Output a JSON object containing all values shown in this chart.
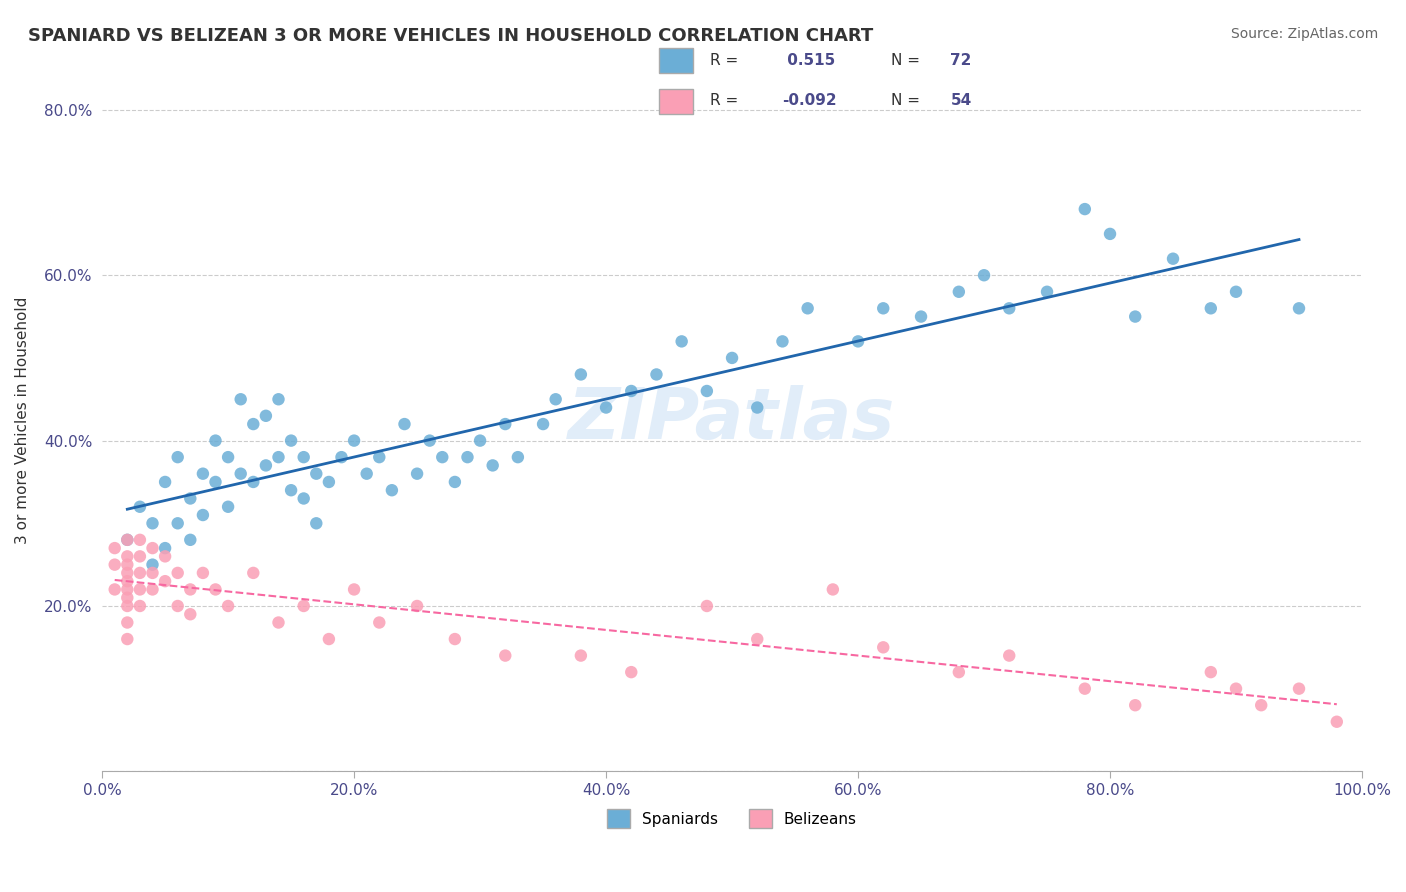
{
  "title": "SPANIARD VS BELIZEAN 3 OR MORE VEHICLES IN HOUSEHOLD CORRELATION CHART",
  "source_text": "Source: ZipAtlas.com",
  "xlabel": "",
  "ylabel": "3 or more Vehicles in Household",
  "watermark": "ZIPatlas",
  "legend_label1": "Spaniards",
  "legend_label2": "Belizeans",
  "r1": 0.515,
  "n1": 72,
  "r2": -0.092,
  "n2": 54,
  "blue_color": "#6baed6",
  "pink_color": "#fa9fb5",
  "blue_line_color": "#2166ac",
  "pink_line_color": "#f768a1",
  "xlim": [
    0.0,
    1.0
  ],
  "ylim": [
    0.0,
    0.85
  ],
  "xticks": [
    0.0,
    0.2,
    0.4,
    0.6,
    0.8,
    1.0
  ],
  "yticks": [
    0.0,
    0.2,
    0.4,
    0.6,
    0.8
  ],
  "xtick_labels": [
    "0.0%",
    "20.0%",
    "40.0%",
    "60.0%",
    "80.0%",
    "100.0%"
  ],
  "ytick_labels": [
    "",
    "20.0%",
    "40.0%",
    "60.0%",
    "80.0%"
  ],
  "blue_scatter_x": [
    0.02,
    0.03,
    0.04,
    0.04,
    0.05,
    0.05,
    0.06,
    0.06,
    0.07,
    0.07,
    0.08,
    0.08,
    0.09,
    0.09,
    0.1,
    0.1,
    0.11,
    0.11,
    0.12,
    0.12,
    0.13,
    0.13,
    0.14,
    0.14,
    0.15,
    0.15,
    0.16,
    0.16,
    0.17,
    0.17,
    0.18,
    0.19,
    0.2,
    0.21,
    0.22,
    0.23,
    0.24,
    0.25,
    0.26,
    0.27,
    0.28,
    0.29,
    0.3,
    0.31,
    0.32,
    0.33,
    0.35,
    0.36,
    0.38,
    0.4,
    0.42,
    0.44,
    0.46,
    0.48,
    0.5,
    0.52,
    0.54,
    0.56,
    0.6,
    0.62,
    0.65,
    0.68,
    0.7,
    0.72,
    0.75,
    0.78,
    0.8,
    0.82,
    0.85,
    0.88,
    0.9,
    0.95
  ],
  "blue_scatter_y": [
    0.28,
    0.32,
    0.3,
    0.25,
    0.35,
    0.27,
    0.38,
    0.3,
    0.33,
    0.28,
    0.36,
    0.31,
    0.4,
    0.35,
    0.38,
    0.32,
    0.45,
    0.36,
    0.42,
    0.35,
    0.43,
    0.37,
    0.45,
    0.38,
    0.4,
    0.34,
    0.38,
    0.33,
    0.36,
    0.3,
    0.35,
    0.38,
    0.4,
    0.36,
    0.38,
    0.34,
    0.42,
    0.36,
    0.4,
    0.38,
    0.35,
    0.38,
    0.4,
    0.37,
    0.42,
    0.38,
    0.42,
    0.45,
    0.48,
    0.44,
    0.46,
    0.48,
    0.52,
    0.46,
    0.5,
    0.44,
    0.52,
    0.56,
    0.52,
    0.56,
    0.55,
    0.58,
    0.6,
    0.56,
    0.58,
    0.68,
    0.65,
    0.55,
    0.62,
    0.56,
    0.58,
    0.56
  ],
  "pink_scatter_x": [
    0.01,
    0.01,
    0.01,
    0.02,
    0.02,
    0.02,
    0.02,
    0.02,
    0.02,
    0.02,
    0.02,
    0.02,
    0.02,
    0.03,
    0.03,
    0.03,
    0.03,
    0.03,
    0.04,
    0.04,
    0.04,
    0.05,
    0.05,
    0.06,
    0.06,
    0.07,
    0.07,
    0.08,
    0.09,
    0.1,
    0.12,
    0.14,
    0.16,
    0.18,
    0.2,
    0.22,
    0.25,
    0.28,
    0.32,
    0.38,
    0.42,
    0.48,
    0.52,
    0.58,
    0.62,
    0.68,
    0.72,
    0.78,
    0.82,
    0.88,
    0.9,
    0.92,
    0.95,
    0.98
  ],
  "pink_scatter_y": [
    0.27,
    0.25,
    0.22,
    0.28,
    0.26,
    0.24,
    0.22,
    0.2,
    0.18,
    0.16,
    0.25,
    0.23,
    0.21,
    0.28,
    0.26,
    0.24,
    0.22,
    0.2,
    0.27,
    0.24,
    0.22,
    0.26,
    0.23,
    0.24,
    0.2,
    0.22,
    0.19,
    0.24,
    0.22,
    0.2,
    0.24,
    0.18,
    0.2,
    0.16,
    0.22,
    0.18,
    0.2,
    0.16,
    0.14,
    0.14,
    0.12,
    0.2,
    0.16,
    0.22,
    0.15,
    0.12,
    0.14,
    0.1,
    0.08,
    0.12,
    0.1,
    0.08,
    0.1,
    0.06
  ]
}
